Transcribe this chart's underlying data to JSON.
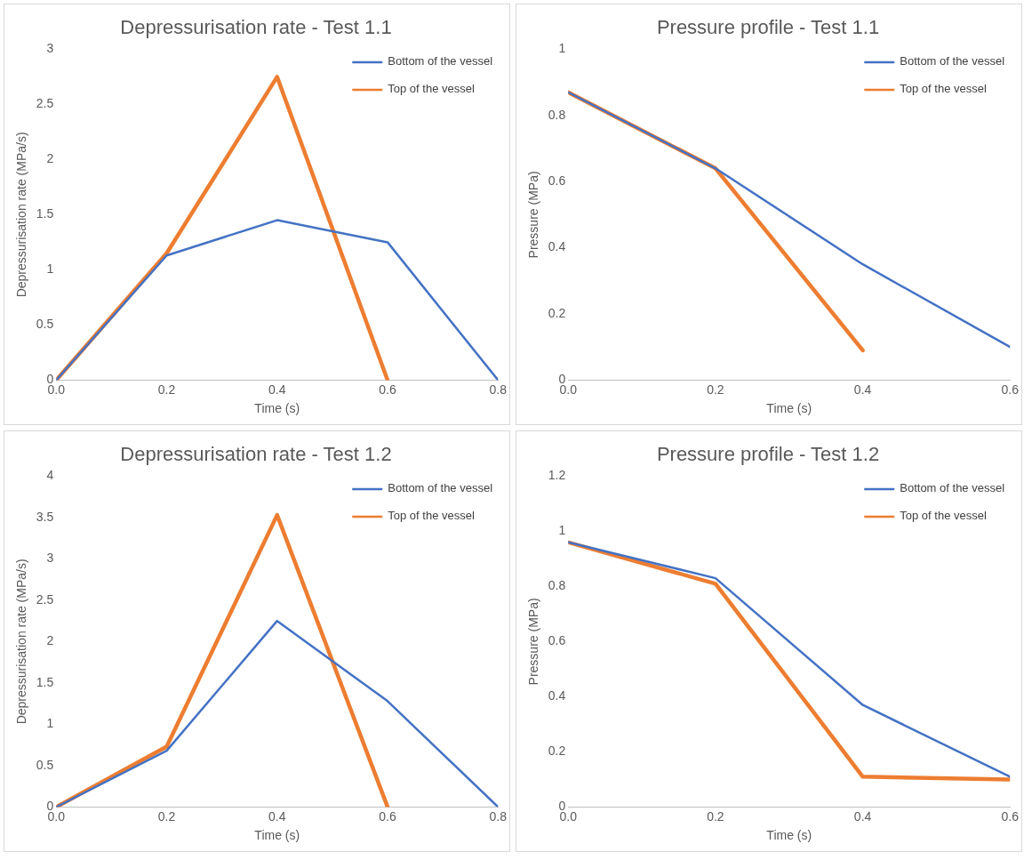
{
  "chart_data": [
    {
      "type": "line",
      "title": "Depressurisation rate - Test 1.1",
      "xlabel": "Time (s)",
      "ylabel": "Depressurisation rate (MPa/s)",
      "xlim": [
        0,
        0.8
      ],
      "xticks": [
        {
          "value": 0,
          "label": "0.0"
        },
        {
          "value": 0.2,
          "label": "0.2"
        },
        {
          "value": 0.4,
          "label": "0.4"
        },
        {
          "value": 0.6,
          "label": "0.6"
        },
        {
          "value": 0.8,
          "label": "0.8"
        }
      ],
      "ylim": [
        0,
        3
      ],
      "yticks": [
        0,
        0.5,
        1,
        1.5,
        2,
        2.5,
        3
      ],
      "grid": false,
      "legend": "top right",
      "marker": "none",
      "line_style": "solid",
      "series": [
        {
          "name": "Bottom of the vessel",
          "color": "#4472c4",
          "x": [
            0,
            0.2,
            0.4,
            0.6,
            0.8
          ],
          "values": [
            0,
            1.13,
            1.45,
            1.25,
            0
          ]
        },
        {
          "name": "Top of the vessel",
          "color": "#ed7d31",
          "x": [
            0,
            0.2,
            0.4,
            0.6
          ],
          "values": [
            0,
            1.15,
            2.75,
            0
          ]
        }
      ]
    },
    {
      "type": "line",
      "title": "Pressure profile - Test 1.1",
      "xlabel": "Time (s)",
      "ylabel": "Pressure (MPa)",
      "xlim": [
        0,
        0.6
      ],
      "xticks": [
        {
          "value": 0,
          "label": "0.0"
        },
        {
          "value": 0.2,
          "label": "0.2"
        },
        {
          "value": 0.4,
          "label": "0.4"
        },
        {
          "value": 0.6,
          "label": "0.6"
        }
      ],
      "ylim": [
        0,
        1
      ],
      "yticks": [
        0,
        0.2,
        0.4,
        0.6,
        0.8,
        1
      ],
      "grid": false,
      "legend": "top right",
      "marker": "none",
      "line_style": "solid",
      "series": [
        {
          "name": "Bottom of the vessel",
          "color": "#4472c4",
          "x": [
            0,
            0.2,
            0.4,
            0.6
          ],
          "values": [
            0.87,
            0.64,
            0.35,
            0.1
          ]
        },
        {
          "name": "Top of the vessel",
          "color": "#ed7d31",
          "x": [
            0,
            0.2,
            0.4
          ],
          "values": [
            0.87,
            0.64,
            0.09
          ]
        }
      ]
    },
    {
      "type": "line",
      "title": "Depressurisation rate - Test 1.2",
      "xlabel": "Time (s)",
      "ylabel": "Depressurisation rate (MPa/s)",
      "xlim": [
        0,
        0.8
      ],
      "xticks": [
        {
          "value": 0,
          "label": "0.0"
        },
        {
          "value": 0.2,
          "label": "0.2"
        },
        {
          "value": 0.4,
          "label": "0.4"
        },
        {
          "value": 0.6,
          "label": "0.6"
        },
        {
          "value": 0.8,
          "label": "0.8"
        }
      ],
      "ylim": [
        0,
        4
      ],
      "yticks": [
        0,
        0.5,
        1,
        1.5,
        2,
        2.5,
        3,
        3.5,
        4
      ],
      "grid": false,
      "legend": "top right",
      "marker": "none",
      "line_style": "solid",
      "series": [
        {
          "name": "Bottom of the vessel",
          "color": "#4472c4",
          "x": [
            0,
            0.2,
            0.4,
            0.6,
            0.8
          ],
          "values": [
            0,
            0.68,
            2.25,
            1.28,
            0
          ]
        },
        {
          "name": "Top of the vessel",
          "color": "#ed7d31",
          "x": [
            0,
            0.2,
            0.4,
            0.6
          ],
          "values": [
            0,
            0.73,
            3.53,
            0
          ]
        }
      ]
    },
    {
      "type": "line",
      "title": "Pressure profile - Test 1.2",
      "xlabel": "Time (s)",
      "ylabel": "Pressure (MPa)",
      "xlim": [
        0,
        0.6
      ],
      "xticks": [
        {
          "value": 0,
          "label": "0.0"
        },
        {
          "value": 0.2,
          "label": "0.2"
        },
        {
          "value": 0.4,
          "label": "0.4"
        },
        {
          "value": 0.6,
          "label": "0.6"
        }
      ],
      "ylim": [
        0,
        1.2
      ],
      "yticks": [
        0,
        0.2,
        0.4,
        0.6,
        0.8,
        1,
        1.2
      ],
      "grid": false,
      "legend": "top right",
      "marker": "none",
      "line_style": "solid",
      "series": [
        {
          "name": "Bottom of the vessel",
          "color": "#4472c4",
          "x": [
            0,
            0.2,
            0.4,
            0.6
          ],
          "values": [
            0.96,
            0.83,
            0.37,
            0.11
          ]
        },
        {
          "name": "Top of the vessel",
          "color": "#ed7d31",
          "x": [
            0,
            0.2,
            0.4,
            0.6
          ],
          "values": [
            0.96,
            0.81,
            0.11,
            0.1
          ]
        }
      ]
    }
  ]
}
